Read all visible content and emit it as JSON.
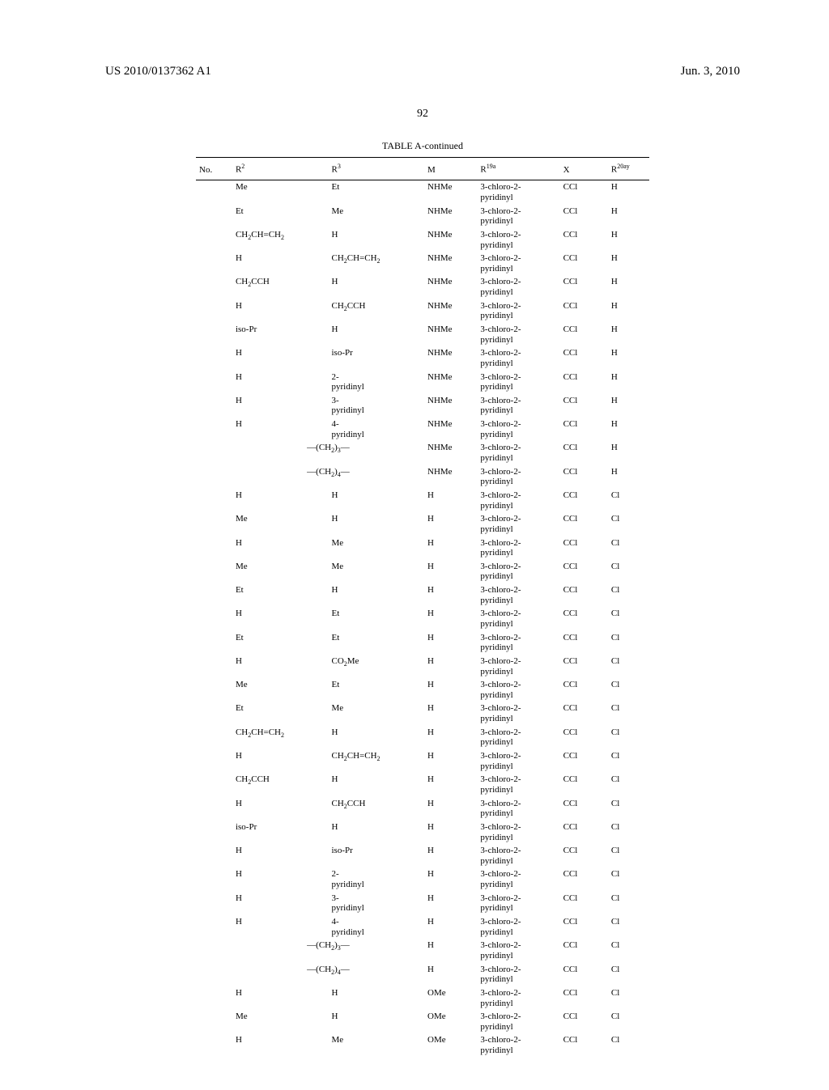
{
  "header": {
    "pub_number": "US 2010/0137362 A1",
    "pub_date": "Jun. 3, 2010"
  },
  "page_number": "92",
  "table": {
    "title": "TABLE A-continued",
    "columns": {
      "no": "No.",
      "r2_html": "R<sup>2</sup>",
      "r3_html": "R<sup>3</sup>",
      "m": "M",
      "r19a_html": "R<sup>19a</sup>",
      "x": "X",
      "r20ay_html": "R<sup>20ay</sup>"
    },
    "rows": [
      {
        "r2": "Me",
        "r3": "Et",
        "m": "NHMe",
        "r19a": "3-chloro-2-pyridinyl",
        "x": "CCl",
        "r20": "H"
      },
      {
        "r2": "Et",
        "r3": "Me",
        "m": "NHMe",
        "r19a": "3-chloro-2-pyridinyl",
        "x": "CCl",
        "r20": "H"
      },
      {
        "r2_html": "CH<sub>2</sub>CH=CH<sub>2</sub>",
        "r3": "H",
        "m": "NHMe",
        "r19a": "3-chloro-2-pyridinyl",
        "x": "CCl",
        "r20": "H"
      },
      {
        "r2": "H",
        "r3_html": "CH<sub>2</sub>CH=CH<sub>2</sub>",
        "m": "NHMe",
        "r19a": "3-chloro-2-pyridinyl",
        "x": "CCl",
        "r20": "H"
      },
      {
        "r2_html": "CH<sub>2</sub>CCH",
        "r3": "H",
        "m": "NHMe",
        "r19a": "3-chloro-2-pyridinyl",
        "x": "CCl",
        "r20": "H"
      },
      {
        "r2": "H",
        "r3_html": "CH<sub>2</sub>CCH",
        "m": "NHMe",
        "r19a": "3-chloro-2-pyridinyl",
        "x": "CCl",
        "r20": "H"
      },
      {
        "r2": "iso-Pr",
        "r3": "H",
        "m": "NHMe",
        "r19a": "3-chloro-2-pyridinyl",
        "x": "CCl",
        "r20": "H"
      },
      {
        "r2": "H",
        "r3": "iso-Pr",
        "m": "NHMe",
        "r19a": "3-chloro-2-pyridinyl",
        "x": "CCl",
        "r20": "H"
      },
      {
        "r2": "H",
        "r3": "2-pyridinyl",
        "m": "NHMe",
        "r19a": "3-chloro-2-pyridinyl",
        "x": "CCl",
        "r20": "H"
      },
      {
        "r2": "H",
        "r3": "3-pyridinyl",
        "m": "NHMe",
        "r19a": "3-chloro-2-pyridinyl",
        "x": "CCl",
        "r20": "H"
      },
      {
        "r2": "H",
        "r3": "4-pyridinyl",
        "m": "NHMe",
        "r19a": "3-chloro-2-pyridinyl",
        "x": "CCl",
        "r20": "H"
      },
      {
        "span_html": "—(CH<sub>2</sub>)<sub>3</sub>—",
        "m": "NHMe",
        "r19a": "3-chloro-2-pyridinyl",
        "x": "CCl",
        "r20": "H"
      },
      {
        "span_html": "—(CH<sub>2</sub>)<sub>4</sub>—",
        "m": "NHMe",
        "r19a": "3-chloro-2-pyridinyl",
        "x": "CCl",
        "r20": "H"
      },
      {
        "r2": "H",
        "r3": "H",
        "m": "H",
        "r19a": "3-chloro-2-pyridinyl",
        "x": "CCl",
        "r20": "Cl"
      },
      {
        "r2": "Me",
        "r3": "H",
        "m": "H",
        "r19a": "3-chloro-2-pyridinyl",
        "x": "CCl",
        "r20": "Cl"
      },
      {
        "r2": "H",
        "r3": "Me",
        "m": "H",
        "r19a": "3-chloro-2-pyridinyl",
        "x": "CCl",
        "r20": "Cl"
      },
      {
        "r2": "Me",
        "r3": "Me",
        "m": "H",
        "r19a": "3-chloro-2-pyridinyl",
        "x": "CCl",
        "r20": "Cl"
      },
      {
        "r2": "Et",
        "r3": "H",
        "m": "H",
        "r19a": "3-chloro-2-pyridinyl",
        "x": "CCl",
        "r20": "Cl"
      },
      {
        "r2": "H",
        "r3": "Et",
        "m": "H",
        "r19a": "3-chloro-2-pyridinyl",
        "x": "CCl",
        "r20": "Cl"
      },
      {
        "r2": "Et",
        "r3": "Et",
        "m": "H",
        "r19a": "3-chloro-2-pyridinyl",
        "x": "CCl",
        "r20": "Cl"
      },
      {
        "r2": "H",
        "r3_html": "CO<sub>2</sub>Me",
        "m": "H",
        "r19a": "3-chloro-2-pyridinyl",
        "x": "CCl",
        "r20": "Cl"
      },
      {
        "r2": "Me",
        "r3": "Et",
        "m": "H",
        "r19a": "3-chloro-2-pyridinyl",
        "x": "CCl",
        "r20": "Cl"
      },
      {
        "r2": "Et",
        "r3": "Me",
        "m": "H",
        "r19a": "3-chloro-2-pyridinyl",
        "x": "CCl",
        "r20": "Cl"
      },
      {
        "r2_html": "CH<sub>2</sub>CH=CH<sub>2</sub>",
        "r3": "H",
        "m": "H",
        "r19a": "3-chloro-2-pyridinyl",
        "x": "CCl",
        "r20": "Cl"
      },
      {
        "r2": "H",
        "r3_html": "CH<sub>2</sub>CH=CH<sub>2</sub>",
        "m": "H",
        "r19a": "3-chloro-2-pyridinyl",
        "x": "CCl",
        "r20": "Cl"
      },
      {
        "r2_html": "CH<sub>2</sub>CCH",
        "r3": "H",
        "m": "H",
        "r19a": "3-chloro-2-pyridinyl",
        "x": "CCl",
        "r20": "Cl"
      },
      {
        "r2": "H",
        "r3_html": "CH<sub>2</sub>CCH",
        "m": "H",
        "r19a": "3-chloro-2-pyridinyl",
        "x": "CCl",
        "r20": "Cl"
      },
      {
        "r2": "iso-Pr",
        "r3": "H",
        "m": "H",
        "r19a": "3-chloro-2-pyridinyl",
        "x": "CCl",
        "r20": "Cl"
      },
      {
        "r2": "H",
        "r3": "iso-Pr",
        "m": "H",
        "r19a": "3-chloro-2-pyridinyl",
        "x": "CCl",
        "r20": "Cl"
      },
      {
        "r2": "H",
        "r3": "2-pyridinyl",
        "m": "H",
        "r19a": "3-chloro-2-pyridinyl",
        "x": "CCl",
        "r20": "Cl"
      },
      {
        "r2": "H",
        "r3": "3-pyridinyl",
        "m": "H",
        "r19a": "3-chloro-2-pyridinyl",
        "x": "CCl",
        "r20": "Cl"
      },
      {
        "r2": "H",
        "r3": "4-pyridinyl",
        "m": "H",
        "r19a": "3-chloro-2-pyridinyl",
        "x": "CCl",
        "r20": "Cl"
      },
      {
        "span_html": "—(CH<sub>2</sub>)<sub>3</sub>—",
        "m": "H",
        "r19a": "3-chloro-2-pyridinyl",
        "x": "CCl",
        "r20": "Cl"
      },
      {
        "span_html": "—(CH<sub>2</sub>)<sub>4</sub>—",
        "m": "H",
        "r19a": "3-chloro-2-pyridinyl",
        "x": "CCl",
        "r20": "Cl"
      },
      {
        "r2": "H",
        "r3": "H",
        "m": "OMe",
        "r19a": "3-chloro-2-pyridinyl",
        "x": "CCl",
        "r20": "Cl"
      },
      {
        "r2": "Me",
        "r3": "H",
        "m": "OMe",
        "r19a": "3-chloro-2-pyridinyl",
        "x": "CCl",
        "r20": "Cl"
      },
      {
        "r2": "H",
        "r3": "Me",
        "m": "OMe",
        "r19a": "3-chloro-2-pyridinyl",
        "x": "CCl",
        "r20": "Cl"
      }
    ]
  }
}
